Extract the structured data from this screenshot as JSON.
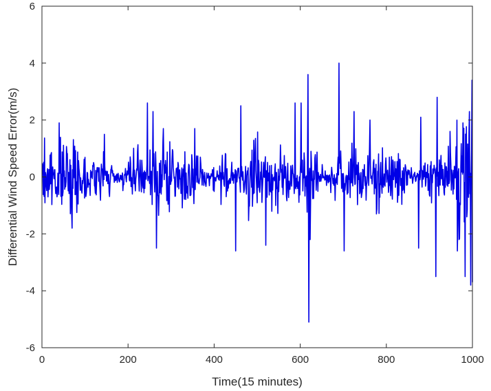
{
  "chart_data": {
    "type": "line",
    "title": "",
    "xlabel": "Time(15 minutes)",
    "ylabel": "Differential Wind Speed Error(m/s)",
    "xlim": [
      0,
      1000
    ],
    "ylim": [
      -6,
      6
    ],
    "x_ticks": [
      0,
      200,
      400,
      600,
      800,
      1000
    ],
    "y_ticks": [
      -6,
      -4,
      -2,
      0,
      2,
      4,
      6
    ],
    "x_tick_labels": [
      "0",
      "200",
      "400",
      "600",
      "800",
      "1000"
    ],
    "y_tick_labels": [
      "-6",
      "-4",
      "-2",
      "0",
      "2",
      "4",
      "6"
    ],
    "grid": false,
    "line_color": "#0000e6",
    "series": [
      {
        "points_count": 1000,
        "x_start": 1,
        "x_step": 1,
        "seed": 7,
        "spikes": [
          {
            "x": 40,
            "y": 1.9
          },
          {
            "x": 145,
            "y": 1.5
          },
          {
            "x": 245,
            "y": 2.6
          },
          {
            "x": 258,
            "y": 2.3
          },
          {
            "x": 266,
            "y": -2.5
          },
          {
            "x": 282,
            "y": 1.7
          },
          {
            "x": 355,
            "y": 1.7
          },
          {
            "x": 450,
            "y": -2.6
          },
          {
            "x": 462,
            "y": 2.5
          },
          {
            "x": 520,
            "y": -2.4
          },
          {
            "x": 588,
            "y": 2.6
          },
          {
            "x": 602,
            "y": 2.6
          },
          {
            "x": 618,
            "y": 3.6
          },
          {
            "x": 620,
            "y": -5.1
          },
          {
            "x": 623,
            "y": -2.2
          },
          {
            "x": 690,
            "y": 4.0
          },
          {
            "x": 702,
            "y": -2.6
          },
          {
            "x": 725,
            "y": 2.3
          },
          {
            "x": 762,
            "y": 2.0
          },
          {
            "x": 875,
            "y": -2.5
          },
          {
            "x": 880,
            "y": 2.1
          },
          {
            "x": 918,
            "y": 2.8
          },
          {
            "x": 915,
            "y": -3.5
          },
          {
            "x": 948,
            "y": 1.6
          },
          {
            "x": 965,
            "y": -2.6
          },
          {
            "x": 978,
            "y": 1.9
          },
          {
            "x": 983,
            "y": -3.5
          },
          {
            "x": 993,
            "y": 2.3
          },
          {
            "x": 996,
            "y": -3.8
          },
          {
            "x": 999,
            "y": 3.4
          },
          {
            "x": 1000,
            "y": -3.7
          }
        ]
      }
    ]
  }
}
